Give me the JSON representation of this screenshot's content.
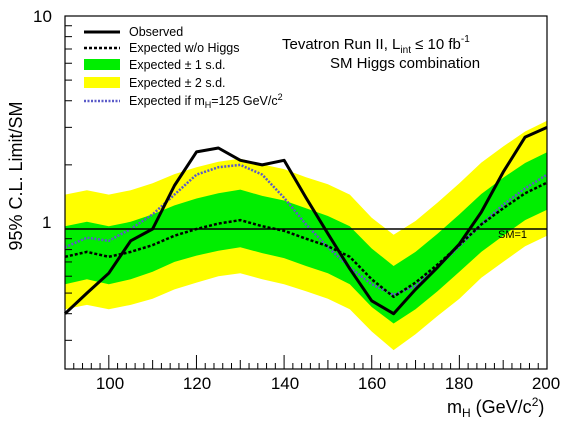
{
  "chart_data": {
    "type": "line",
    "x_axis": {
      "label_main": "m",
      "label_sub": "H",
      "label_tail": " (GeV/c",
      "label_sup": "2",
      "label_close": ")",
      "range": [
        90,
        200
      ],
      "tick_labels": [
        "100",
        "120",
        "140",
        "160",
        "180",
        "200"
      ],
      "tick_values": [
        100,
        120,
        140,
        160,
        180,
        200
      ]
    },
    "y_axis": {
      "label": "95% C.L. Limit/SM",
      "scale": "log",
      "range": [
        0.22,
        10
      ],
      "tick_labels": [
        "1",
        "10"
      ],
      "tick_values": [
        1,
        10
      ]
    },
    "annotation": {
      "line1_main": "Tevatron Run II, L",
      "line1_sub": "int",
      "line1_tail": " ≤ 10 fb",
      "line1_sup": "-1",
      "line2": "SM Higgs combination"
    },
    "sm_line": {
      "label": "SM=1",
      "value": 1
    },
    "legend": {
      "observed": "Observed",
      "expected": "Expected w/o Higgs",
      "band1": "Expected ± 1 s.d.",
      "band2": "Expected ± 2 s.d.",
      "expected125_main": "Expected if m",
      "expected125_sub": "H",
      "expected125_tail": "=125 GeV/c",
      "expected125_sup": "2"
    },
    "colors": {
      "band1": "#00ee00",
      "band2": "#ffff00",
      "observed": "#000000",
      "expected": "#000000",
      "expected125": "#5a5ac8"
    },
    "x": [
      90,
      95,
      100,
      105,
      110,
      115,
      120,
      125,
      130,
      135,
      140,
      145,
      150,
      155,
      160,
      165,
      170,
      175,
      180,
      185,
      190,
      195,
      200
    ],
    "series": [
      {
        "name": "Observed",
        "values": [
          0.4,
          0.5,
          0.62,
          0.88,
          1.0,
          1.6,
          2.3,
          2.4,
          2.1,
          2.0,
          2.1,
          1.4,
          0.95,
          0.65,
          0.46,
          0.4,
          0.52,
          0.66,
          0.85,
          1.2,
          1.85,
          2.7,
          3.0
        ]
      },
      {
        "name": "Expected w/o Higgs",
        "values": [
          0.74,
          0.78,
          0.74,
          0.78,
          0.84,
          0.93,
          1.0,
          1.06,
          1.1,
          1.03,
          0.98,
          0.9,
          0.83,
          0.74,
          0.58,
          0.48,
          0.56,
          0.68,
          0.84,
          1.05,
          1.25,
          1.47,
          1.65
        ]
      },
      {
        "name": "Expected if mH=125 GeV/c2",
        "values": [
          0.82,
          0.91,
          0.88,
          1.0,
          1.17,
          1.45,
          1.8,
          1.95,
          2.0,
          1.8,
          1.4,
          1.05,
          0.82,
          0.66,
          0.55,
          0.49,
          0.54,
          0.66,
          0.83,
          1.05,
          1.3,
          1.55,
          1.8
        ]
      }
    ],
    "bands": {
      "one_sigma_low": [
        0.55,
        0.58,
        0.55,
        0.58,
        0.63,
        0.7,
        0.75,
        0.79,
        0.82,
        0.77,
        0.73,
        0.67,
        0.62,
        0.55,
        0.43,
        0.36,
        0.42,
        0.51,
        0.63,
        0.78,
        0.93,
        1.1,
        1.23
      ],
      "one_sigma_high": [
        1.03,
        1.08,
        1.03,
        1.08,
        1.17,
        1.29,
        1.39,
        1.47,
        1.53,
        1.43,
        1.36,
        1.25,
        1.15,
        1.03,
        0.81,
        0.67,
        0.78,
        0.95,
        1.17,
        1.46,
        1.74,
        2.04,
        2.29
      ],
      "two_sigma_low": [
        0.42,
        0.44,
        0.42,
        0.44,
        0.47,
        0.52,
        0.56,
        0.6,
        0.62,
        0.58,
        0.55,
        0.51,
        0.47,
        0.42,
        0.33,
        0.27,
        0.32,
        0.39,
        0.47,
        0.59,
        0.7,
        0.83,
        0.93
      ],
      "two_sigma_high": [
        1.45,
        1.52,
        1.45,
        1.52,
        1.64,
        1.81,
        1.95,
        2.07,
        2.14,
        2.01,
        1.91,
        1.75,
        1.62,
        1.45,
        1.13,
        0.94,
        1.09,
        1.33,
        1.64,
        2.05,
        2.44,
        2.87,
        3.22
      ]
    }
  }
}
